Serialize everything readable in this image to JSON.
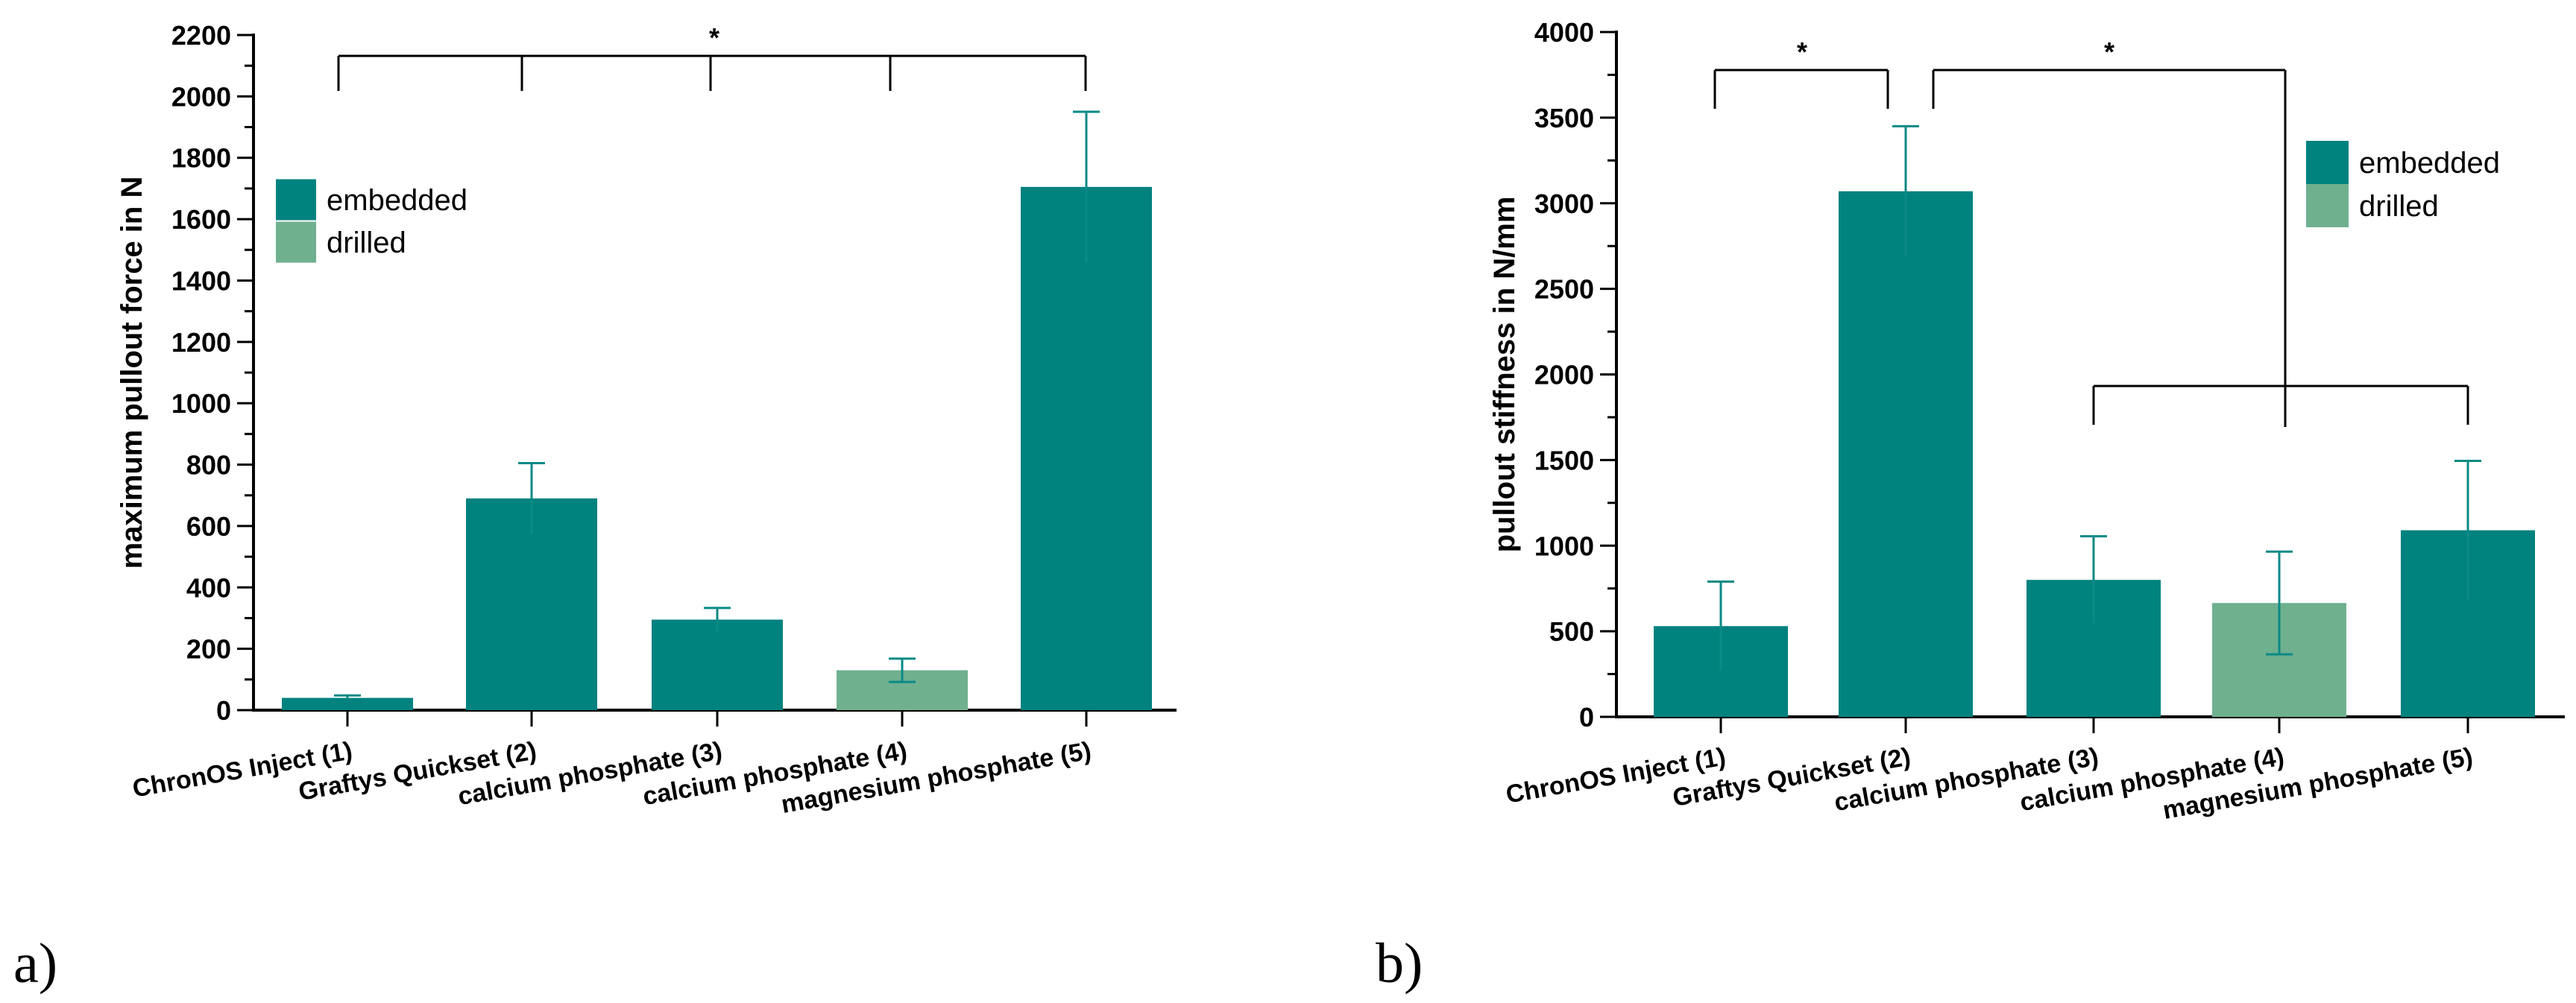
{
  "colors": {
    "embedded": "#00827f",
    "drilled": "#6fb08f",
    "axis": "#000000"
  },
  "chart_data": [
    {
      "type": "bar",
      "panel_label": "a)",
      "categories": [
        "ChronOS Inject (1)",
        "Graftys Quickset (2)",
        "calcium phosphate (3)",
        "calcium phosphate (4)",
        "magnesium phosphate (5)"
      ],
      "values": [
        40,
        690,
        295,
        130,
        1705
      ],
      "errors": [
        8,
        115,
        38,
        38,
        245
      ],
      "groups": [
        "embedded",
        "embedded",
        "embedded",
        "drilled",
        "embedded"
      ],
      "ylabel": "maximum pullout force in N",
      "ylim": [
        0,
        2200
      ],
      "yticks": [
        "0",
        "200",
        "400",
        "600",
        "800",
        "1000",
        "1200",
        "1400",
        "1600",
        "1800",
        "2000",
        "2200"
      ],
      "legend": [
        "embedded",
        "drilled"
      ],
      "significance": [
        {
          "label": "*"
        }
      ]
    },
    {
      "type": "bar",
      "panel_label": "b)",
      "categories": [
        "ChronOS Inject (1)",
        "Graftys Quickset (2)",
        "calcium phosphate (3)",
        "calcium phosphate (4)",
        "magnesium phosphate (5)"
      ],
      "values": [
        530,
        3070,
        800,
        665,
        1090
      ],
      "errors": [
        260,
        380,
        255,
        300,
        405
      ],
      "groups": [
        "embedded",
        "embedded",
        "embedded",
        "drilled",
        "embedded"
      ],
      "ylabel": "pullout stiffness in N/mm",
      "ylim": [
        0,
        4000
      ],
      "yticks": [
        "0",
        "500",
        "1000",
        "1500",
        "2000",
        "2500",
        "3000",
        "3500",
        "4000"
      ],
      "legend": [
        "embedded",
        "drilled"
      ],
      "significance": [
        {
          "label": "*"
        },
        {
          "label": "*"
        }
      ]
    }
  ]
}
